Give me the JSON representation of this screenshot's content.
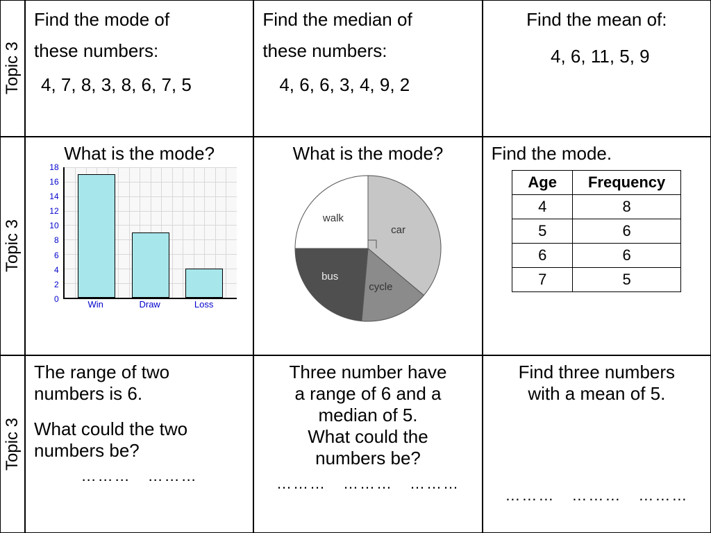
{
  "row_labels": [
    "Topic 3",
    "Topic 3",
    "Topic 3"
  ],
  "row1": {
    "c1": {
      "q1": "Find the mode of",
      "q2": "these numbers:",
      "nums": "4, 7, 8, 3, 8, 6, 7, 5"
    },
    "c2": {
      "q1": "Find the median of",
      "q2": "these numbers:",
      "nums": "4, 6, 6, 3, 4, 9, 2"
    },
    "c3": {
      "q1": "Find the mean of:",
      "nums": "4, 6, 11, 5, 9"
    }
  },
  "row2": {
    "c1": {
      "title": "What is the mode?",
      "chart": {
        "type": "bar",
        "ymax": 18,
        "ystep": 2,
        "categories": [
          "Win",
          "Draw",
          "Loss"
        ],
        "values": [
          17,
          9,
          4
        ],
        "bar_color": "#a7e6ea",
        "bar_border": "#000000",
        "axis_label_color": "#0000cc",
        "grid_color": "#d8d8d8",
        "bg": "#f8f8f8"
      }
    },
    "c2": {
      "title": "What is the mode?",
      "pie": {
        "type": "pie",
        "slices": [
          {
            "label": "car",
            "value": 130,
            "color": "#c6c6c6",
            "text_dark": false
          },
          {
            "label": "cycle",
            "value": 55,
            "color": "#8b8b8b",
            "text_dark": false
          },
          {
            "label": "bus",
            "value": 85,
            "color": "#4f4f4f",
            "text_dark": true
          },
          {
            "label": "walk",
            "value": 90,
            "color": "#ffffff",
            "text_dark": false
          }
        ],
        "border_color": "#555555"
      }
    },
    "c3": {
      "title": "Find the mode.",
      "table": {
        "columns": [
          "Age",
          "Frequency"
        ],
        "rows": [
          [
            "4",
            "8"
          ],
          [
            "5",
            "6"
          ],
          [
            "6",
            "6"
          ],
          [
            "7",
            "5"
          ]
        ]
      }
    }
  },
  "row3": {
    "c1": {
      "l1": "The range of two",
      "l2": "numbers is 6.",
      "l3": "What could the two",
      "l4": "numbers be?",
      "blanks": 2
    },
    "c2": {
      "l1": "Three number have",
      "l2": "a range of 6 and a",
      "l3": "median of 5.",
      "l4": "What could the",
      "l5": "numbers be?",
      "blanks": 3
    },
    "c3": {
      "l1": "Find three numbers",
      "l2": "with a mean of 5.",
      "blanks": 3
    }
  },
  "blank_token": "………"
}
